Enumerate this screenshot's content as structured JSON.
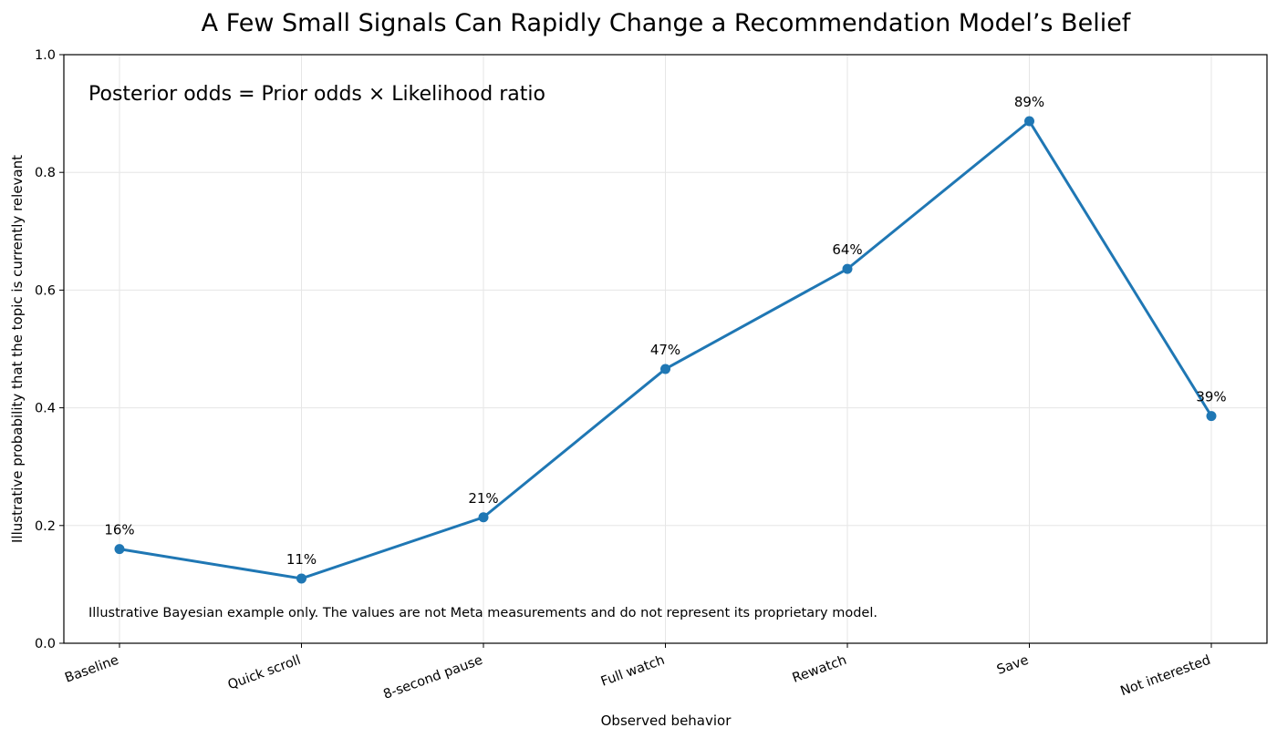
{
  "chart_data": {
    "type": "line",
    "title": "A Few Small Signals Can Rapidly Change a Recommendation Model’s Belief",
    "xlabel": "Observed behavior",
    "ylabel": "Illustrative probability that the topic is currently relevant",
    "categories": [
      "Baseline",
      "Quick scroll",
      "8-second pause",
      "Full watch",
      "Rewatch",
      "Save",
      "Not interested"
    ],
    "values": [
      0.16,
      0.11,
      0.214,
      0.466,
      0.636,
      0.887,
      0.386
    ],
    "value_labels": [
      "16%",
      "11%",
      "21%",
      "47%",
      "64%",
      "89%",
      "39%"
    ],
    "ylim": [
      0,
      1
    ],
    "yticks": [
      "0.0",
      "0.2",
      "0.4",
      "0.6",
      "0.8",
      "1.0"
    ],
    "grid": true,
    "line_color": "#1f77b4",
    "formula": "Posterior odds = Prior odds × Likelihood ratio",
    "note": "Illustrative Bayesian example only. The values are not Meta measurements and do not represent its proprietary model."
  }
}
